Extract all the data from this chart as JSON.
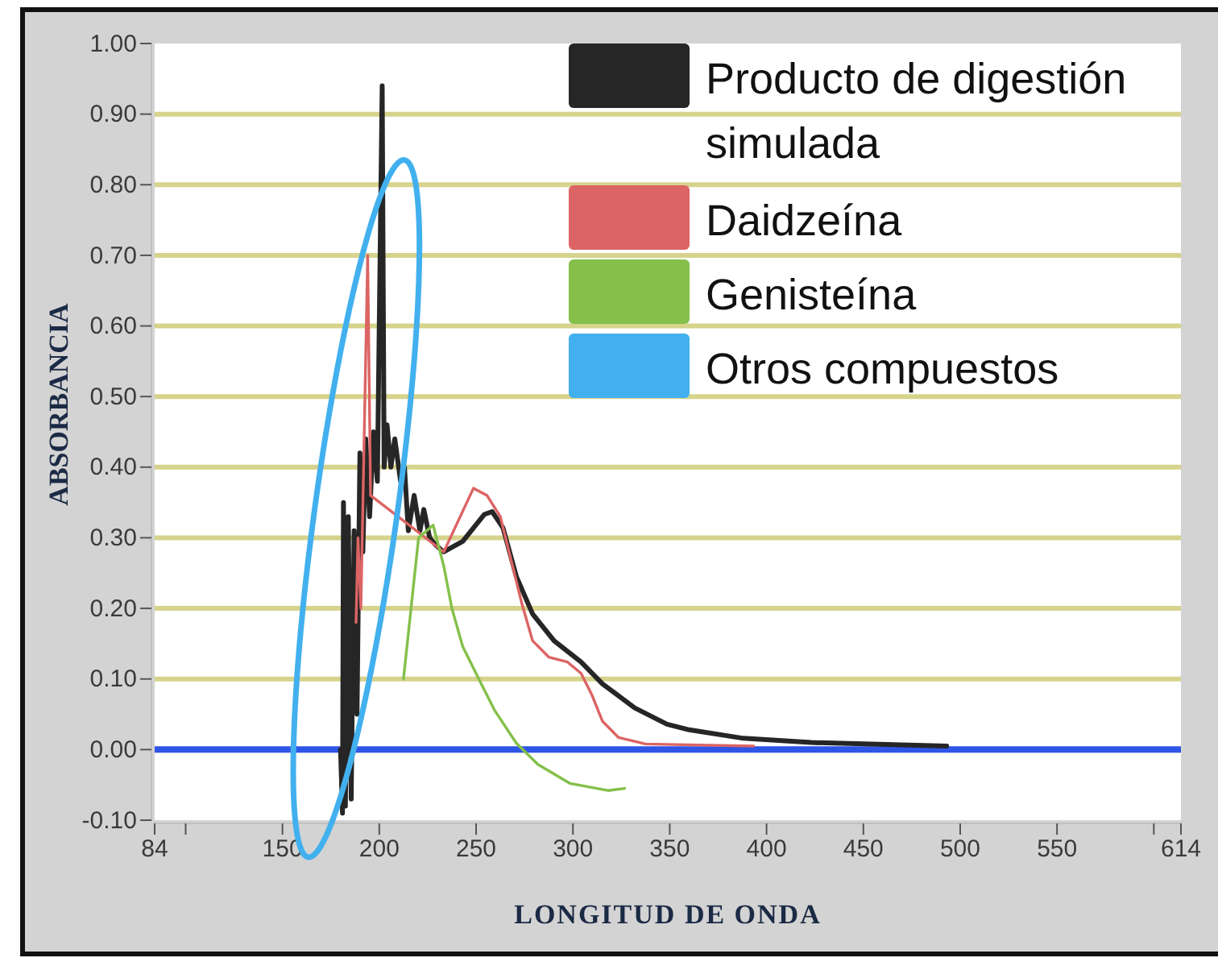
{
  "chart_data": {
    "type": "line",
    "xlabel": "LONGITUD DE ONDA",
    "ylabel": "ABSORBANCIA",
    "xlim": [
      84,
      614
    ],
    "xticks": [
      84,
      {
        "value": 100,
        "label": null
      },
      150,
      200,
      250,
      300,
      350,
      400,
      450,
      500,
      550,
      {
        "value": 600,
        "label": null
      },
      614
    ],
    "ylim": [
      -0.1,
      1.0
    ],
    "yticks": [
      {
        "value": -0.1,
        "label": "-0.10"
      },
      {
        "value": 0,
        "label": "0.00"
      },
      {
        "value": 0.1,
        "label": "0.10"
      },
      {
        "value": 0.2,
        "label": "0.20"
      },
      {
        "value": 0.3,
        "label": "0.30"
      },
      {
        "value": 0.4,
        "label": "0.40"
      },
      {
        "value": 0.5,
        "label": "0.50"
      },
      {
        "value": 0.6,
        "label": "0.60"
      },
      {
        "value": 0.7,
        "label": "0.70"
      },
      {
        "value": 0.8,
        "label": "0.80"
      },
      {
        "value": 0.9,
        "label": "0.90"
      },
      {
        "value": 1.0,
        "label": "1.00"
      }
    ],
    "grid": "y",
    "legend": "top right",
    "series": [
      {
        "name": "Producto de digestión simulada",
        "color": "#262626",
        "x": [
          180,
          181,
          181.5,
          182.5,
          184,
          185.5,
          187,
          188.5,
          190,
          191.5,
          193,
          195,
          197,
          199,
          201.5,
          202.5,
          204,
          206,
          208,
          211,
          213,
          215,
          218,
          221,
          223,
          226,
          229,
          233.3,
          243.1,
          254.2,
          258.3,
          263.9,
          270.8,
          279.2,
          290.3,
          304.2,
          315.3,
          331.9,
          348.6,
          360,
          388,
          423,
          493
        ],
        "values": [
          0.0,
          -0.09,
          0.35,
          -0.08,
          0.33,
          -0.07,
          0.31,
          0.05,
          0.42,
          0.28,
          0.44,
          0.33,
          0.45,
          0.38,
          0.94,
          0.4,
          0.46,
          0.4,
          0.44,
          0.38,
          0.4,
          0.31,
          0.36,
          0.31,
          0.34,
          0.3,
          0.29,
          0.28,
          0.295,
          0.333,
          0.337,
          0.314,
          0.245,
          0.192,
          0.154,
          0.124,
          0.093,
          0.059,
          0.036,
          0.028,
          0.016,
          0.01,
          0.005
        ]
      },
      {
        "name": "Daidzeína",
        "color": "#dc6464",
        "x": [
          188,
          189,
          190.5,
          194,
          195.5,
          233.3,
          248.6,
          255.6,
          262.5,
          268.1,
          273.6,
          279.2,
          287.5,
          297.2,
          304.2,
          309.7,
          315.3,
          323.6,
          337.5,
          393.3
        ],
        "values": [
          0.18,
          0.3,
          0.2,
          0.7,
          0.36,
          0.28,
          0.37,
          0.36,
          0.33,
          0.268,
          0.207,
          0.154,
          0.131,
          0.124,
          0.108,
          0.078,
          0.04,
          0.017,
          0.008,
          0.005
        ]
      },
      {
        "name": "Genisteína",
        "color": "#84c04a",
        "x": [
          212.5,
          220.3,
          227.8,
          233.3,
          237.5,
          243.1,
          251.4,
          259.7,
          270.8,
          281.9,
          298.6,
          318.1,
          326.7
        ],
        "values": [
          0.1,
          0.3,
          0.318,
          0.26,
          0.2,
          0.146,
          0.1,
          0.055,
          0.009,
          -0.021,
          -0.048,
          -0.058,
          -0.055
        ]
      }
    ],
    "ref_lines": [
      {
        "axis": "y",
        "value": 0,
        "color": "#2f55e6"
      }
    ],
    "annotations": [
      "Otros compuestos"
    ]
  }
}
